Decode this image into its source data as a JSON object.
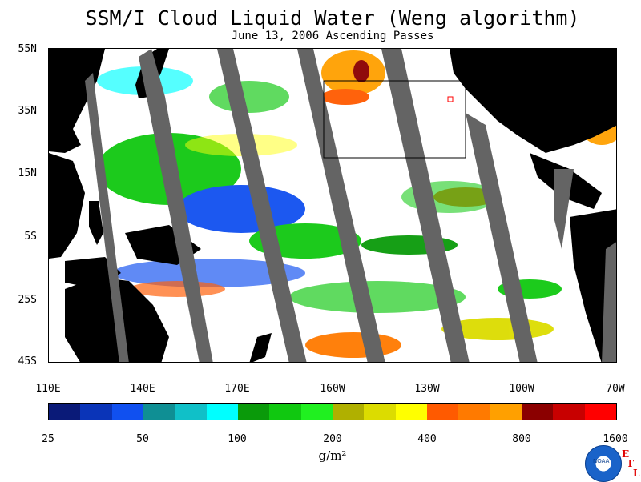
{
  "title": "SSM/I Cloud Liquid Water (Weng algorithm)",
  "subtitle": "June 13, 2006  Ascending Passes",
  "lat_labels": [
    "55N",
    "35N",
    "15N",
    "5S",
    "25S",
    "45S"
  ],
  "lon_labels": [
    "110E",
    "140E",
    "170E",
    "160W",
    "130W",
    "100W",
    "70W"
  ],
  "colorbar": {
    "colors": [
      "#0a1a78",
      "#0a34b8",
      "#1050f0",
      "#0f8f94",
      "#10c0c8",
      "#00ffff",
      "#0a9a0a",
      "#10c810",
      "#20f020",
      "#b0b000",
      "#dcdc00",
      "#ffff00",
      "#ff5a00",
      "#ff7a00",
      "#ffa000",
      "#8b0000",
      "#c80000",
      "#ff0000"
    ],
    "tick_labels": [
      "25",
      "50",
      "100",
      "200",
      "400",
      "800",
      "1600"
    ]
  },
  "units": "g/m²",
  "logo": {
    "name": "noaa-logo",
    "text": "NOAA"
  },
  "etl": [
    "E",
    "T",
    "L"
  ]
}
